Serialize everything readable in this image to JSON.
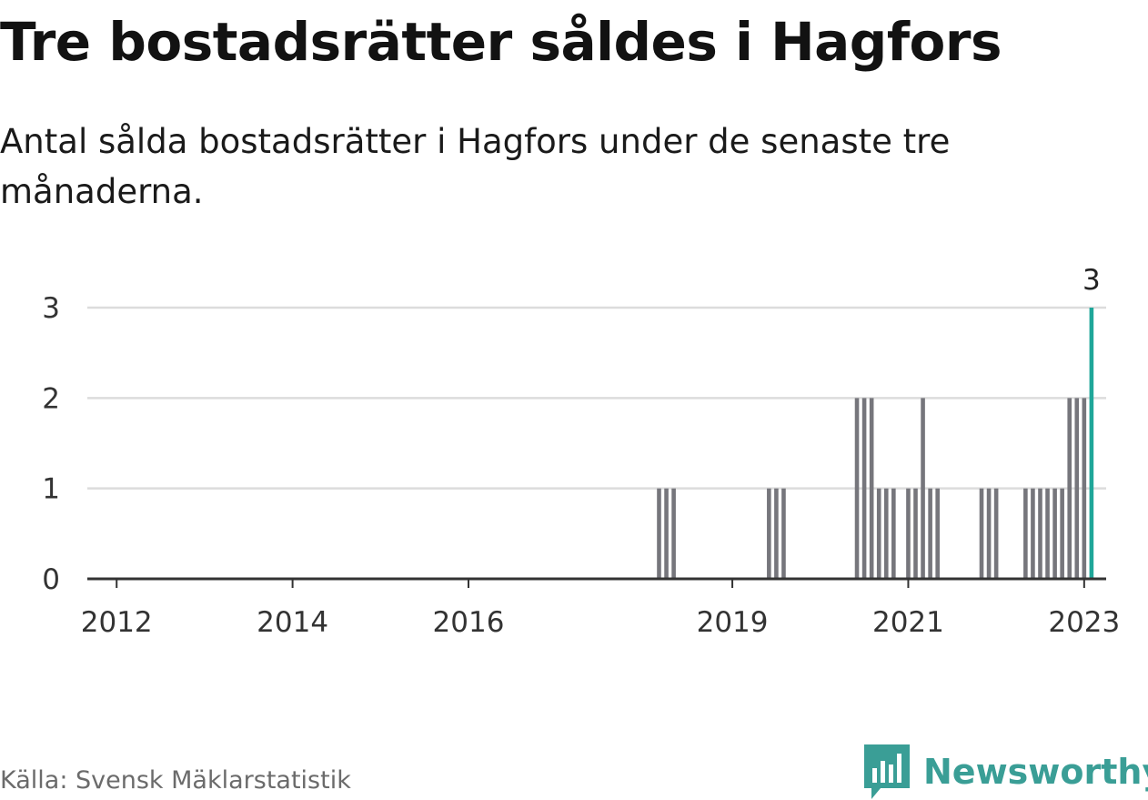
{
  "title": "Tre bostadsrätter såldes i Hagfors",
  "subtitle": "Antal sålda bostadsrätter i Hagfors under de senaste tre månaderna.",
  "source": "Källa: Svensk Mäklarstatistik",
  "brand": {
    "name": "Newsworthy",
    "logo_icon": "newsworthy-bar-chart-logo-icon",
    "color": "#3a9e96"
  },
  "colors": {
    "bar": "#76767c",
    "highlight": "#1fa699",
    "grid": "#dcdcdc",
    "axis": "#333333",
    "tick_text": "#333333"
  },
  "chart_data": {
    "type": "bar",
    "title": "Tre bostadsrätter såldes i Hagfors",
    "subtitle": "Antal sålda bostadsrätter i Hagfors under de senaste tre månaderna.",
    "xlabel": "",
    "ylabel": "",
    "ylim": [
      0,
      3
    ],
    "y_ticks": [
      0,
      1,
      2,
      3
    ],
    "grid": true,
    "legend": "none",
    "x_tick_labels": [
      {
        "label": "2012",
        "date": "2012-01"
      },
      {
        "label": "2014",
        "date": "2014-01"
      },
      {
        "label": "2016",
        "date": "2016-01"
      },
      {
        "label": "2019",
        "date": "2019-01"
      },
      {
        "label": "2021",
        "date": "2021-01"
      },
      {
        "label": "2023",
        "date": "2023-01"
      }
    ],
    "x_range": [
      "2011-09",
      "2023-04"
    ],
    "bars": [
      {
        "date": "2018-03",
        "value": 1
      },
      {
        "date": "2018-04",
        "value": 1
      },
      {
        "date": "2018-05",
        "value": 1
      },
      {
        "date": "2019-06",
        "value": 1
      },
      {
        "date": "2019-07",
        "value": 1
      },
      {
        "date": "2019-08",
        "value": 1
      },
      {
        "date": "2020-06",
        "value": 2
      },
      {
        "date": "2020-07",
        "value": 2
      },
      {
        "date": "2020-08",
        "value": 2
      },
      {
        "date": "2020-09",
        "value": 1
      },
      {
        "date": "2020-10",
        "value": 1
      },
      {
        "date": "2020-11",
        "value": 1
      },
      {
        "date": "2021-01",
        "value": 1
      },
      {
        "date": "2021-02",
        "value": 1
      },
      {
        "date": "2021-03",
        "value": 2
      },
      {
        "date": "2021-04",
        "value": 1
      },
      {
        "date": "2021-05",
        "value": 1
      },
      {
        "date": "2021-11",
        "value": 1
      },
      {
        "date": "2021-12",
        "value": 1
      },
      {
        "date": "2022-01",
        "value": 1
      },
      {
        "date": "2022-05",
        "value": 1
      },
      {
        "date": "2022-06",
        "value": 1
      },
      {
        "date": "2022-07",
        "value": 1
      },
      {
        "date": "2022-08",
        "value": 1
      },
      {
        "date": "2022-09",
        "value": 1
      },
      {
        "date": "2022-10",
        "value": 1
      },
      {
        "date": "2022-11",
        "value": 2
      },
      {
        "date": "2022-12",
        "value": 2
      },
      {
        "date": "2023-01",
        "value": 2
      },
      {
        "date": "2023-02",
        "value": 3,
        "highlight": true
      }
    ],
    "annotations": [
      {
        "date": "2023-02",
        "value": 3,
        "text": "3"
      }
    ]
  }
}
